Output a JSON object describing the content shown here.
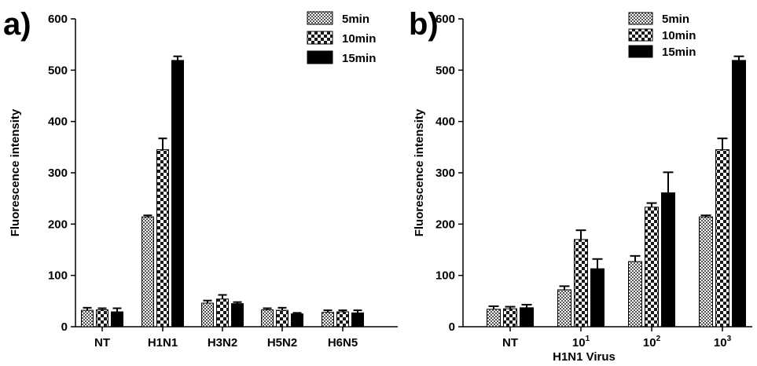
{
  "chart_data": [
    {
      "panel_label": "a)",
      "type": "bar",
      "ylabel": "Fluorescence intensity",
      "xlabel": "",
      "ylim": [
        0,
        600
      ],
      "yticks": [
        0,
        100,
        200,
        300,
        400,
        500,
        600
      ],
      "categories": [
        "NT",
        "H1N1",
        "H3N2",
        "H5N2",
        "H6N5"
      ],
      "legend_position": "top-right",
      "series": [
        {
          "name": "5min",
          "pattern": "fine-check",
          "values": [
            32,
            214,
            46,
            33,
            28
          ],
          "errors": [
            5,
            3,
            5,
            3,
            4
          ]
        },
        {
          "name": "10min",
          "pattern": "coarse-check",
          "values": [
            33,
            345,
            54,
            32,
            29
          ],
          "errors": [
            3,
            22,
            8,
            5,
            3
          ]
        },
        {
          "name": "15min",
          "pattern": "solid",
          "values": [
            29,
            519,
            45,
            25,
            27
          ],
          "errors": [
            7,
            8,
            3,
            2,
            5
          ]
        }
      ]
    },
    {
      "panel_label": "b)",
      "type": "bar",
      "ylabel": "Fluorescence intensity",
      "xlabel": "H1N1 Virus",
      "ylim": [
        0,
        600
      ],
      "yticks": [
        0,
        100,
        200,
        300,
        400,
        500,
        600
      ],
      "categories": [
        {
          "base": "NT",
          "sup": ""
        },
        {
          "base": "10",
          "sup": "1"
        },
        {
          "base": "10",
          "sup": "2"
        },
        {
          "base": "10",
          "sup": "3"
        }
      ],
      "legend_position": "top-left",
      "series": [
        {
          "name": "5min",
          "pattern": "fine-check",
          "values": [
            34,
            72,
            127,
            214
          ],
          "errors": [
            6,
            7,
            11,
            3
          ]
        },
        {
          "name": "10min",
          "pattern": "coarse-check",
          "values": [
            35,
            170,
            233,
            345
          ],
          "errors": [
            4,
            18,
            8,
            22
          ]
        },
        {
          "name": "15min",
          "pattern": "solid",
          "values": [
            37,
            113,
            261,
            519
          ],
          "errors": [
            6,
            19,
            40,
            8
          ]
        }
      ]
    }
  ]
}
